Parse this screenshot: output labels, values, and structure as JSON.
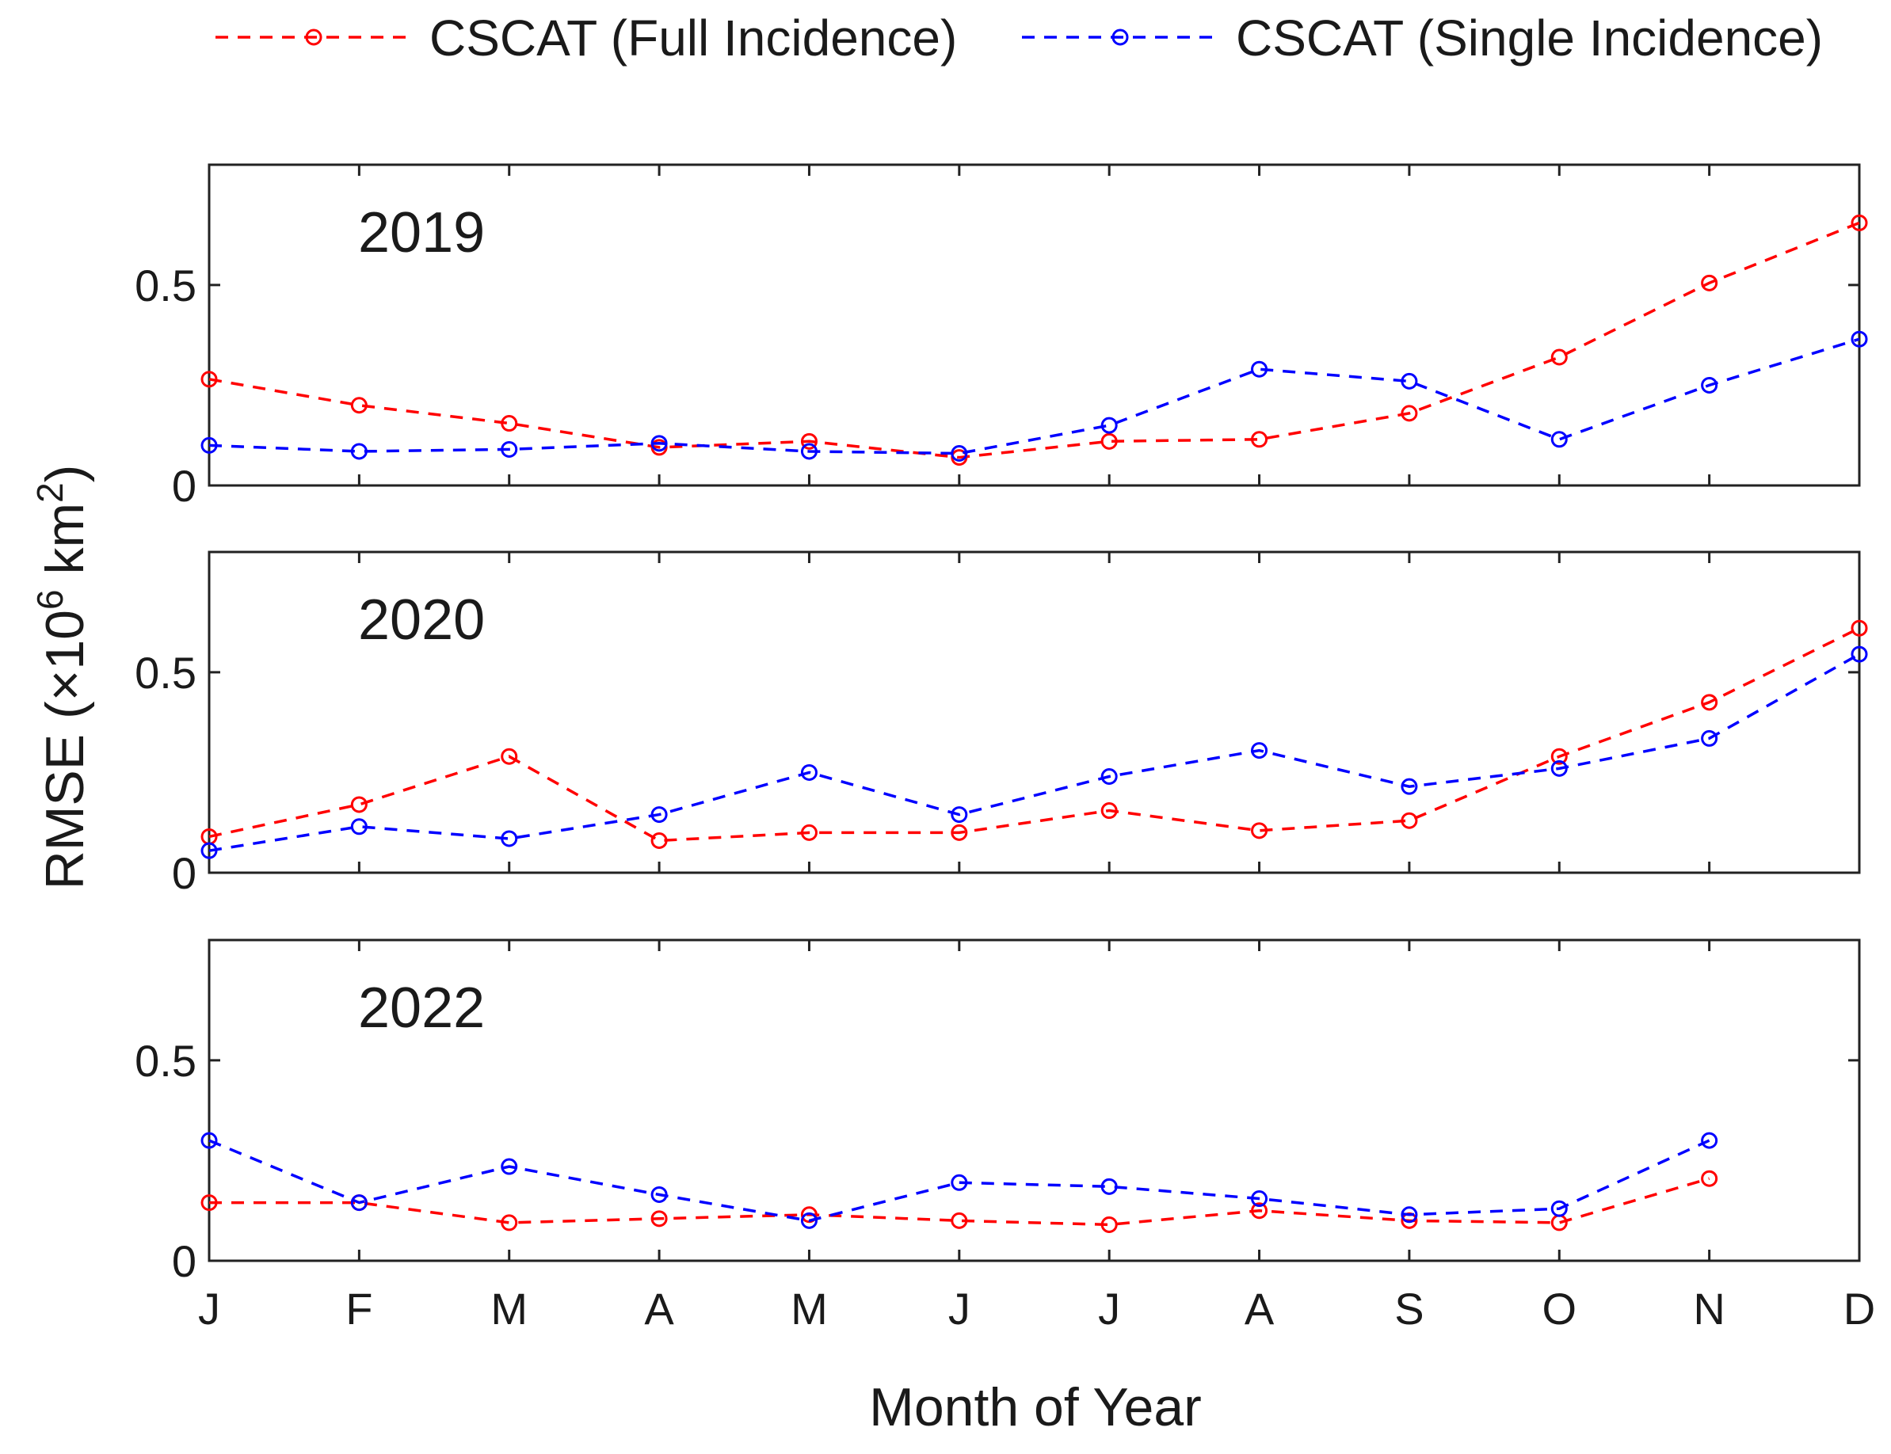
{
  "chart_data": {
    "type": "line",
    "xlabel": "Month of Year",
    "ylabel": "RMSE (×10",
    "ylabel_exp": "6",
    "ylabel_unit": " km",
    "ylabel_unit_exp": "2",
    "ylabel_close": ")",
    "categories": [
      "J",
      "F",
      "M",
      "A",
      "M",
      "J",
      "J",
      "A",
      "S",
      "O",
      "N",
      "D"
    ],
    "ylim": [
      0,
      0.8
    ],
    "yticks": [
      0,
      0.5
    ],
    "ytick_labels": [
      "0",
      "0.5"
    ],
    "legend": {
      "position": "top",
      "entries": [
        "CSCAT (Full Incidence)",
        "CSCAT (Single Incidence)"
      ]
    },
    "colors": {
      "full": "#ff0000",
      "single": "#0000ff"
    },
    "panels": [
      {
        "label": "2019",
        "series": [
          {
            "name": "CSCAT (Full Incidence)",
            "values": [
              0.265,
              0.2,
              0.155,
              0.095,
              0.11,
              0.07,
              0.11,
              0.115,
              0.18,
              0.32,
              0.505,
              0.655
            ]
          },
          {
            "name": "CSCAT (Single Incidence)",
            "values": [
              0.1,
              0.085,
              0.09,
              0.105,
              0.085,
              0.08,
              0.15,
              0.29,
              0.26,
              0.115,
              0.25,
              0.365
            ]
          }
        ]
      },
      {
        "label": "2020",
        "series": [
          {
            "name": "CSCAT (Full Incidence)",
            "values": [
              0.09,
              0.17,
              0.29,
              0.08,
              0.1,
              0.1,
              0.155,
              0.105,
              0.13,
              0.29,
              0.425,
              0.61
            ]
          },
          {
            "name": "CSCAT (Single Incidence)",
            "values": [
              0.055,
              0.115,
              0.085,
              0.145,
              0.25,
              0.145,
              0.24,
              0.305,
              0.215,
              0.26,
              0.335,
              0.545
            ]
          }
        ]
      },
      {
        "label": "2022",
        "series": [
          {
            "name": "CSCAT (Full Incidence)",
            "values": [
              0.145,
              0.145,
              0.095,
              0.105,
              0.115,
              0.1,
              0.09,
              0.125,
              0.1,
              0.095,
              0.205,
              null
            ]
          },
          {
            "name": "CSCAT (Single Incidence)",
            "values": [
              0.3,
              0.145,
              0.235,
              0.165,
              0.1,
              0.195,
              0.185,
              0.155,
              0.115,
              0.13,
              0.3,
              null
            ]
          }
        ]
      }
    ]
  }
}
